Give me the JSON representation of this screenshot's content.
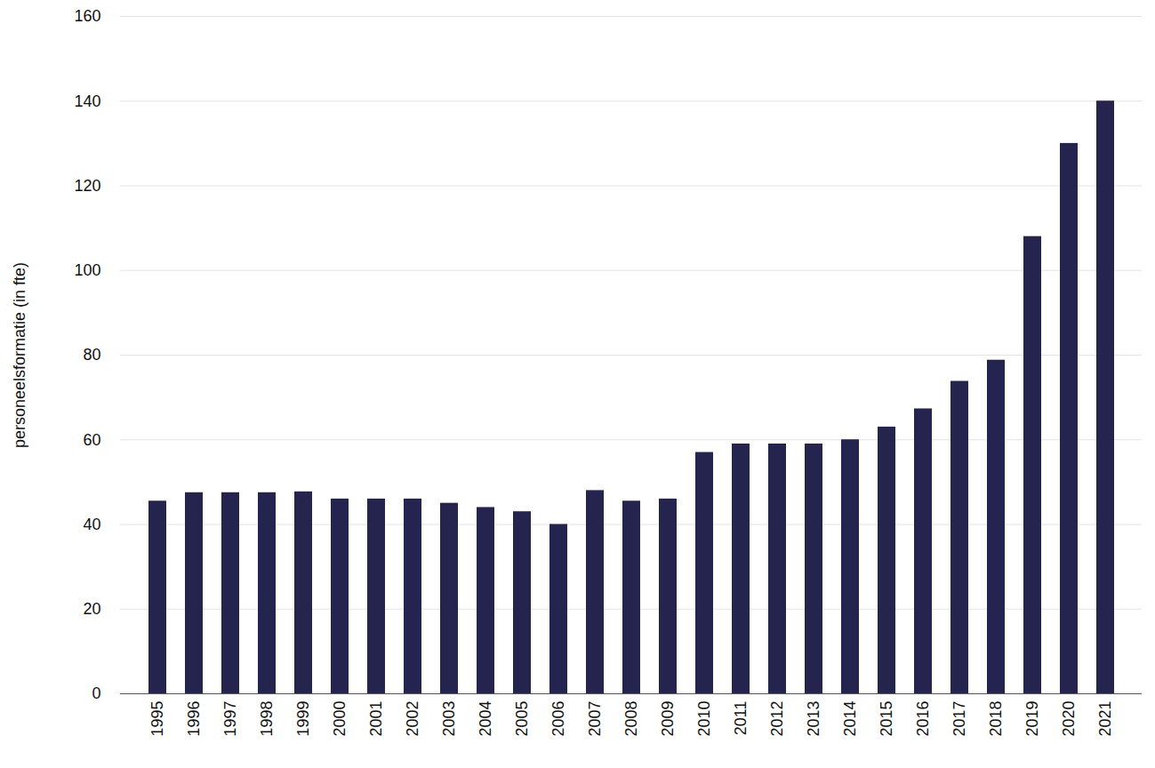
{
  "chart_data": {
    "type": "bar",
    "y_label": "personeelsformatie (in fte)",
    "categories": [
      "1995",
      "1996",
      "1997",
      "1998",
      "1999",
      "2000",
      "2001",
      "2002",
      "2003",
      "2004",
      "2005",
      "2006",
      "2007",
      "2008",
      "2009",
      "2010",
      "2011",
      "2012",
      "2013",
      "2014",
      "2015",
      "2016",
      "2017",
      "2018",
      "2019",
      "2020",
      "2021"
    ],
    "values": [
      45.5,
      47.5,
      47.5,
      47.5,
      47.7,
      46,
      46,
      46,
      45,
      44,
      43,
      40,
      48,
      45.5,
      46,
      57,
      59,
      59,
      59,
      60,
      63,
      67.3,
      73.8,
      78.8,
      108,
      130,
      140
    ],
    "color": "#24244f",
    "ylim": [
      0,
      160
    ],
    "yticks": [
      0,
      20,
      40,
      60,
      80,
      100,
      120,
      140,
      160
    ],
    "grid": true
  }
}
